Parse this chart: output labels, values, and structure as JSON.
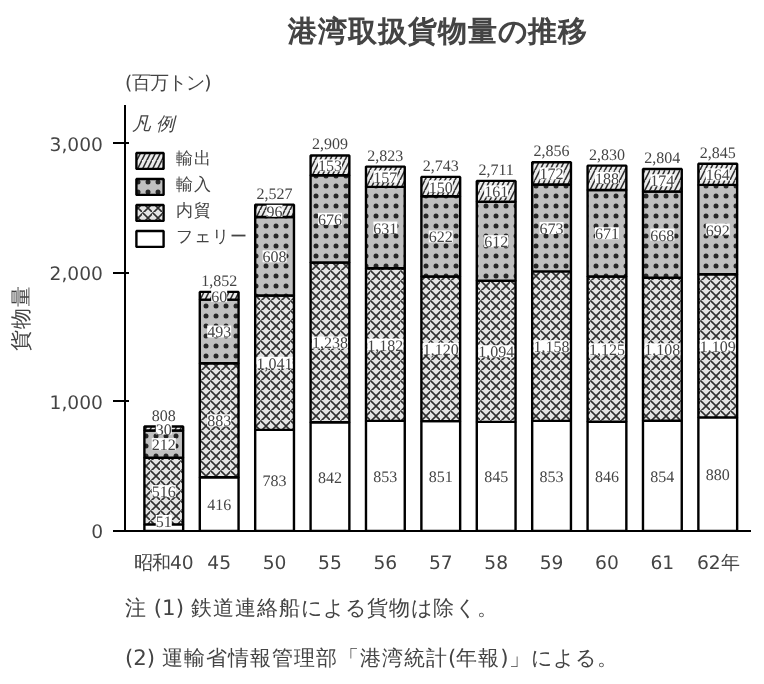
{
  "chart_data": {
    "type": "bar",
    "stacked": true,
    "title": "港湾取扱貨物量の推移",
    "ylabel": "貨物量",
    "categories": [
      "昭和40",
      "45",
      "50",
      "55",
      "56",
      "57",
      "58",
      "59",
      "60",
      "61",
      "62年"
    ],
    "series": [
      {
        "name": "フェリー",
        "color": "#ffffff",
        "values": [
          51,
          416,
          783,
          842,
          853,
          851,
          845,
          853,
          846,
          854,
          880
        ]
      },
      {
        "name": "内貿",
        "color": "#e4e4e4",
        "values": [
          516,
          883,
          1041,
          1238,
          1182,
          1120,
          1094,
          1158,
          1125,
          1108,
          1109
        ],
        "value_labels": [
          "516",
          "883",
          "1,041",
          "1,238",
          "1,182",
          "1,120",
          "1,094",
          "1,158",
          "1,125",
          "1,108",
          "1,109"
        ]
      },
      {
        "name": "輸入",
        "color": "#c0c0c0",
        "values": [
          212,
          493,
          608,
          676,
          631,
          622,
          612,
          673,
          671,
          668,
          692
        ]
      },
      {
        "name": "輸出",
        "color": "#ececec",
        "values": [
          30,
          60,
          96,
          153,
          157,
          150,
          161,
          172,
          188,
          174,
          164
        ]
      }
    ],
    "totals": [
      "808",
      "1,852",
      "2,527",
      "2,909",
      "2,823",
      "2,743",
      "2,711",
      "2,856",
      "2,830",
      "2,804",
      "2,845"
    ],
    "data_labels": true,
    "legend": "top left",
    "legend_title": "凡 例",
    "grid": false,
    "ylim": [
      0,
      3300
    ],
    "yticks": [
      {
        "value": 0,
        "label": "0"
      },
      {
        "value": 1000,
        "label": "1,000"
      },
      {
        "value": 2000,
        "label": "2,000"
      },
      {
        "value": 3000,
        "label": "3,000"
      }
    ],
    "annotations": [
      "(百万トン)",
      "注 (1) 鉄道連絡船による貨物は除く。",
      "(2) 運輸省情報管理部「港湾統計(年報)」による。"
    ]
  }
}
